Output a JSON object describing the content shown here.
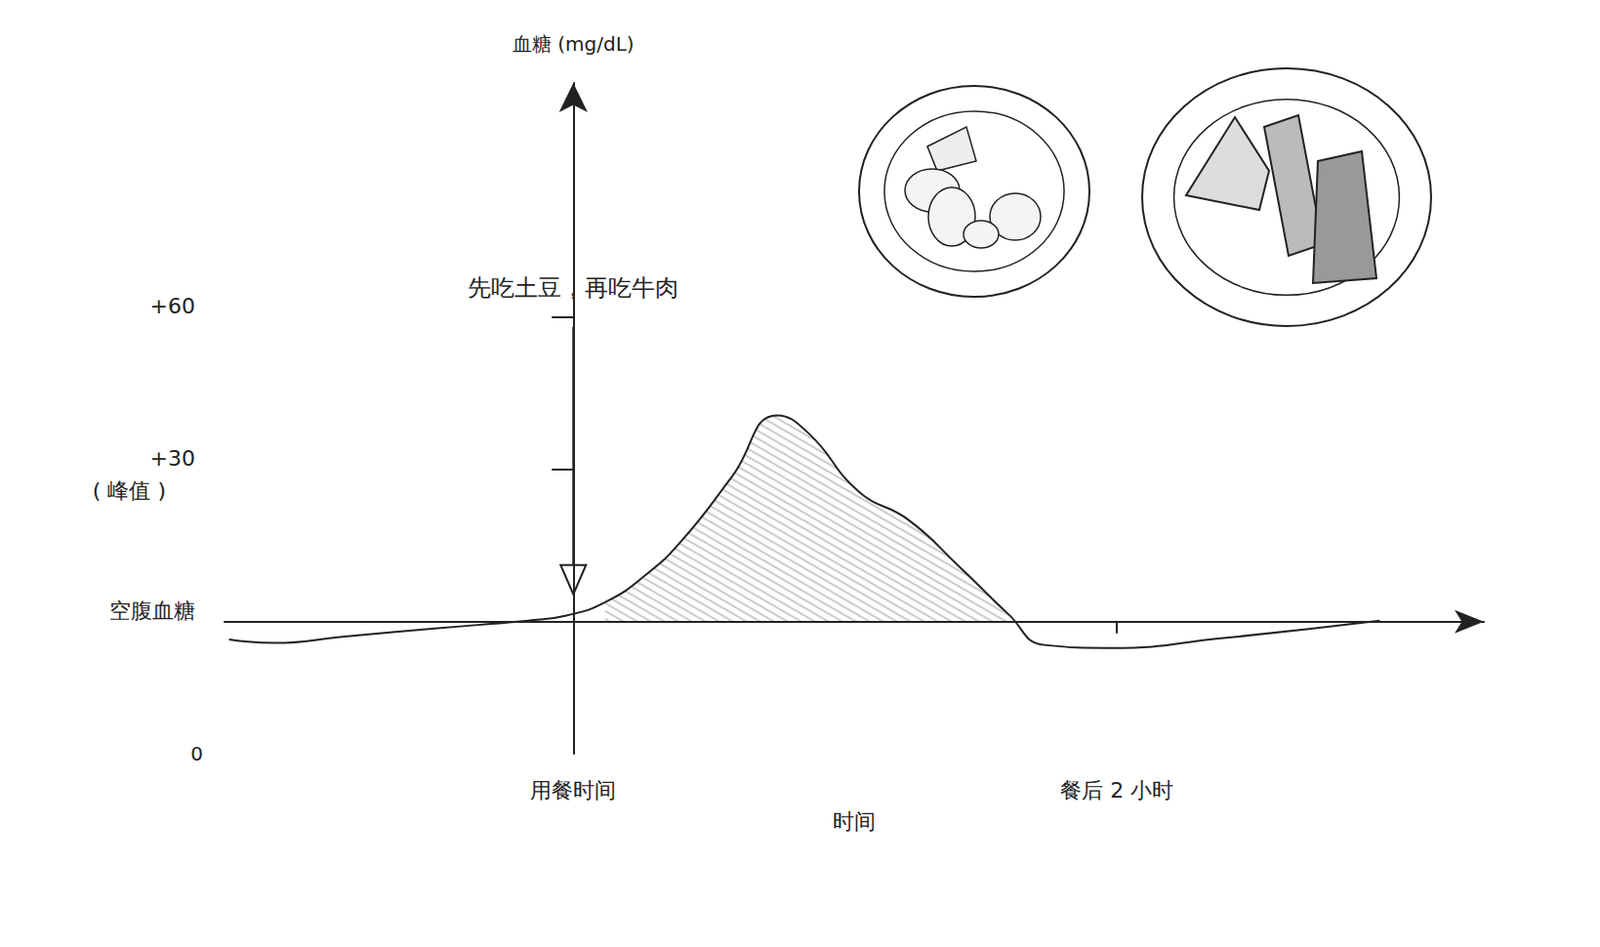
{
  "chart_data": {
    "type": "line",
    "y_label": "血糖 (mg/dL)",
    "x_label": "时间",
    "x": [
      -76,
      -66,
      -51,
      -30,
      -10,
      -1.5,
      7,
      16,
      24,
      35,
      45,
      52,
      63,
      74,
      85,
      96,
      104,
      119,
      143,
      178
    ],
    "values": [
      -3.5,
      -4.2,
      -3,
      -1.3,
      0.2,
      1.2,
      3.8,
      9.2,
      16,
      28.5,
      40.6,
      37,
      25.6,
      20,
      11,
      1.5,
      -4.6,
      -5.2,
      -3.3,
      0.2
    ],
    "color": "#222222",
    "xlim": [
      -77,
      201
    ],
    "xticks": [
      {
        "value": 0,
        "label": "用餐时间"
      },
      {
        "value": 120,
        "label": "餐后 2 小时"
      }
    ],
    "ylim": [
      -26,
      106
    ],
    "yticks": [
      {
        "value": 0,
        "label": "空腹血糖"
      },
      {
        "value": 30,
        "label": "+30"
      },
      {
        "value": 60,
        "label": "+60"
      }
    ],
    "origin_label": "0",
    "annotations": [
      {
        "text": "先吃土豆，再吃牛肉",
        "x": 0
      },
      {
        "text": "( 峰值 )",
        "y": 30
      }
    ],
    "shaded_range": [
      0,
      96
    ],
    "grid": false
  }
}
